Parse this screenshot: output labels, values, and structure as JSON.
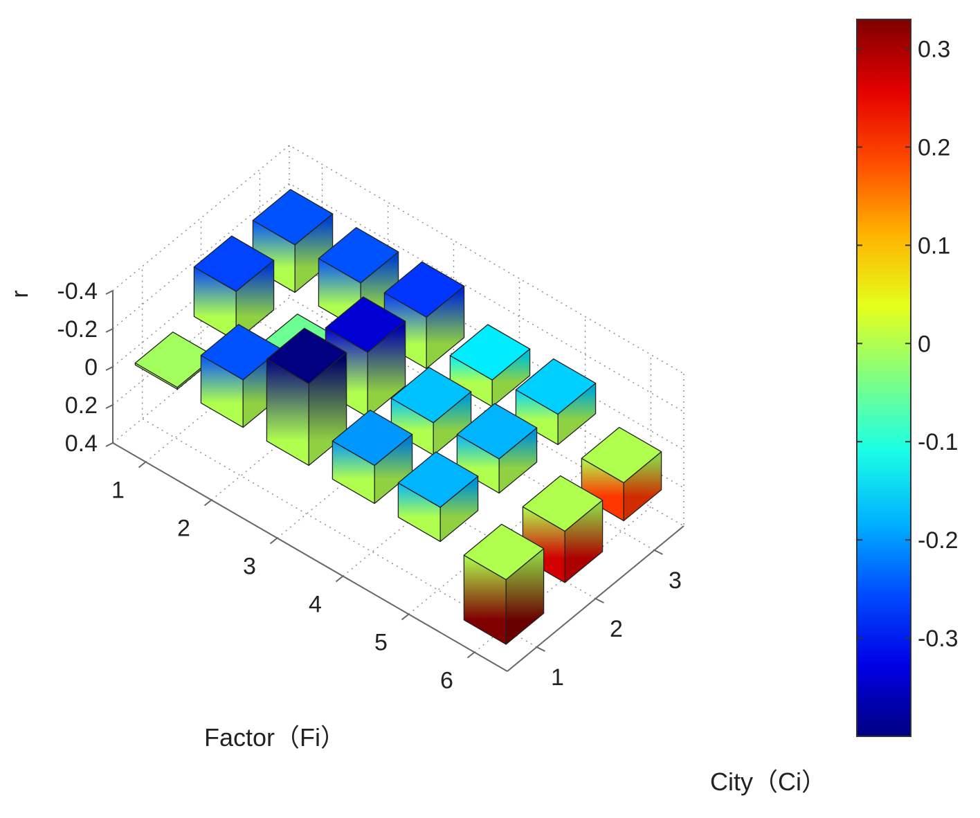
{
  "chart_data": {
    "type": "bar3d",
    "title": "",
    "xlabel": "Factor（Fi）",
    "ylabel": "City（Ci）",
    "zlabel": "r",
    "factor_ticks": [
      "1",
      "2",
      "3",
      "4",
      "5",
      "6"
    ],
    "city_ticks": [
      "1",
      "2",
      "3"
    ],
    "z_ticks": [
      "-0.4",
      "-0.2",
      "0",
      "0.2",
      "0.4"
    ],
    "z_tick_values": [
      -0.4,
      -0.2,
      0,
      0.2,
      0.4
    ],
    "zlim": [
      -0.4,
      0.4
    ],
    "z_direction": "reversed",
    "grid": true,
    "colormap": "jet",
    "colorbar": {
      "ticks": [
        "0.3",
        "0.2",
        "0.1",
        "0",
        "-0.1",
        "-0.2",
        "-0.3"
      ],
      "tick_values": [
        0.3,
        0.2,
        0.1,
        0,
        -0.1,
        -0.2,
        -0.3
      ],
      "range": [
        -0.4,
        0.33
      ],
      "placement": "right"
    },
    "series": [
      {
        "city": "1",
        "values": [
          -0.01,
          -0.25,
          -0.43,
          -0.2,
          -0.18,
          0.34
        ]
      },
      {
        "city": "2",
        "values": [
          -0.26,
          -0.05,
          -0.34,
          -0.17,
          -0.18,
          0.27
        ]
      },
      {
        "city": "3",
        "values": [
          -0.25,
          -0.25,
          -0.27,
          -0.14,
          -0.16,
          0.2
        ]
      }
    ]
  }
}
